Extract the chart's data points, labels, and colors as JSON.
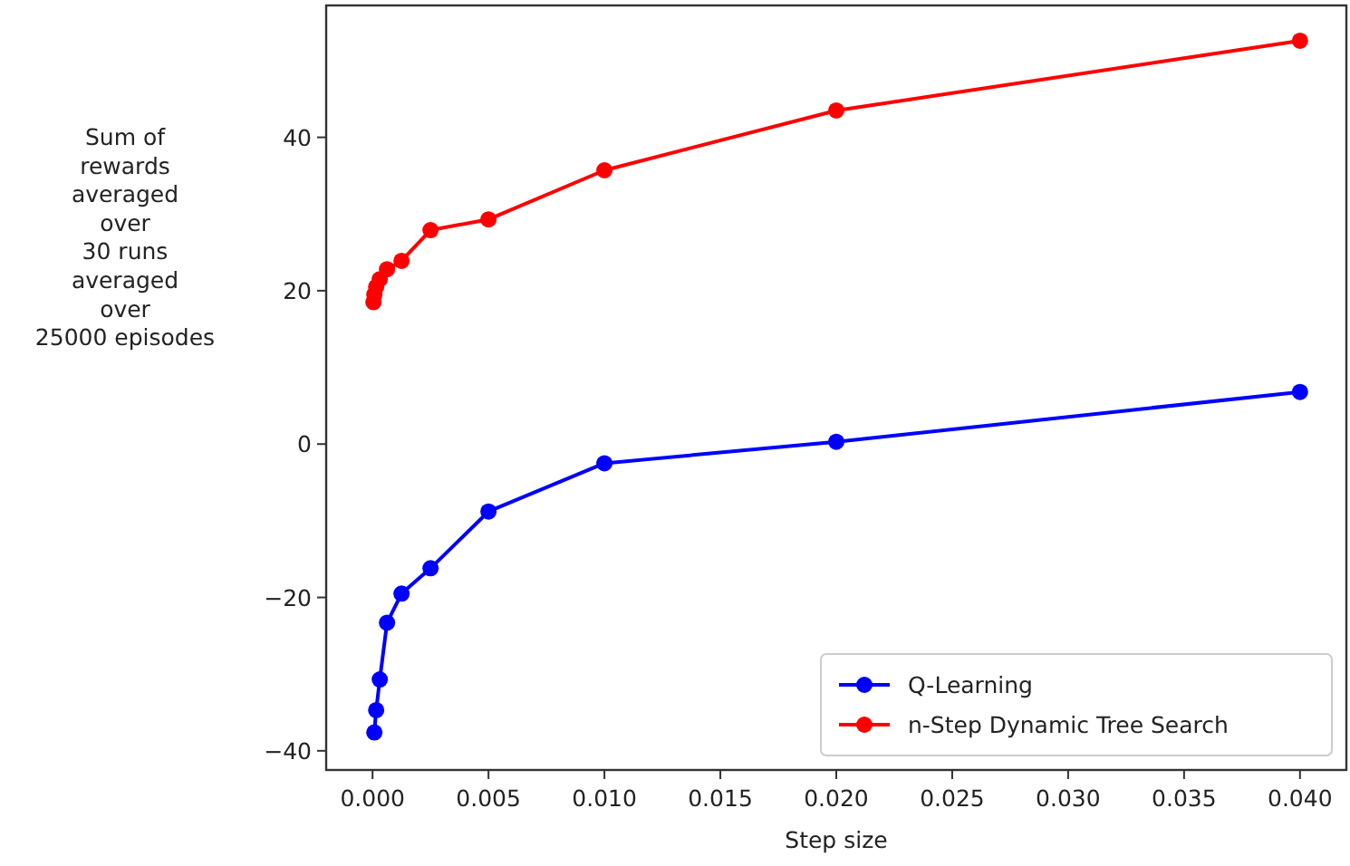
{
  "chart_data": {
    "type": "line",
    "xlabel": "Step size",
    "ylabel": "Sum of\nrewards\naveraged\nover\n30 runs\naveraged\nover\n25000 episodes",
    "x": [
      3.90625e-05,
      7.8125e-05,
      0.00015625,
      0.0003125,
      0.000625,
      0.00125,
      0.0025,
      0.005,
      0.01,
      0.02,
      0.04
    ],
    "series": [
      {
        "name": "Q-Learning",
        "color": "#0000ff",
        "values": [
          null,
          -37.6,
          -34.7,
          -30.7,
          -23.3,
          -19.5,
          -16.2,
          -8.8,
          -2.5,
          0.3,
          6.8
        ]
      },
      {
        "name": "n-Step Dynamic Tree Search",
        "color": "#ff0000",
        "values": [
          18.5,
          19.5,
          20.5,
          21.5,
          22.8,
          23.9,
          27.9,
          29.3,
          35.7,
          43.5,
          52.6
        ]
      }
    ],
    "xlim": [
      -0.002,
      0.042
    ],
    "ylim": [
      -42.5,
      57.2
    ],
    "xticks": [
      {
        "value": 0,
        "label": "0.000"
      },
      {
        "value": 0.005,
        "label": "0.005"
      },
      {
        "value": 0.01,
        "label": "0.010"
      },
      {
        "value": 0.015,
        "label": "0.015"
      },
      {
        "value": 0.02,
        "label": "0.020"
      },
      {
        "value": 0.025,
        "label": "0.025"
      },
      {
        "value": 0.03,
        "label": "0.030"
      },
      {
        "value": 0.035,
        "label": "0.035"
      },
      {
        "value": 0.04,
        "label": "0.040"
      }
    ],
    "yticks": [
      {
        "value": -40,
        "label": "−40"
      },
      {
        "value": -20,
        "label": "−20"
      },
      0,
      20,
      40
    ],
    "marker": "circle",
    "line_style": "solid",
    "grid": false,
    "legend": "bottom right"
  }
}
